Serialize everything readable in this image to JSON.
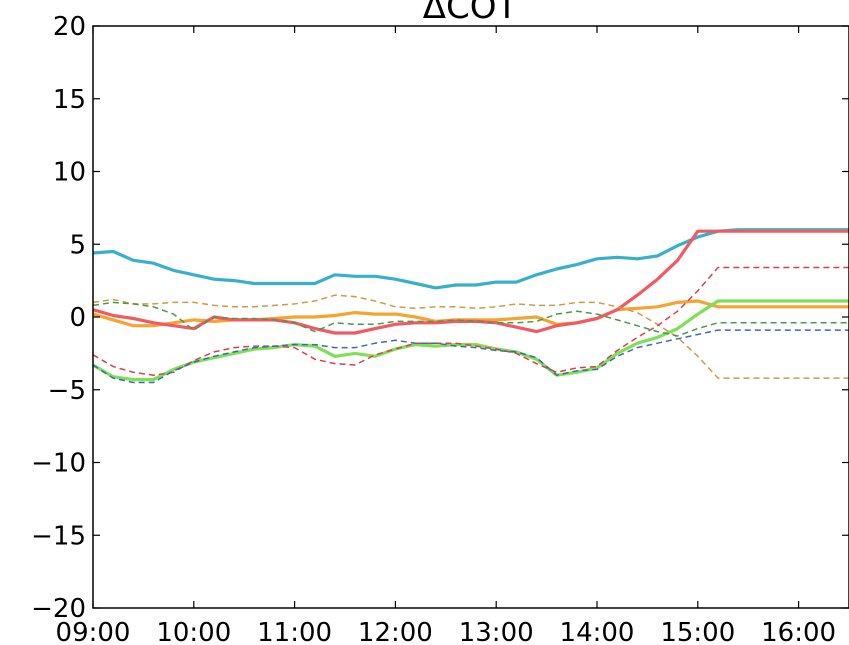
{
  "chart_data": {
    "type": "line",
    "title": "ΔCOT",
    "xlabel": "",
    "ylabel": "",
    "xlim": [
      "09:00",
      "16:30"
    ],
    "ylim": [
      -20,
      20
    ],
    "x_ticks": [
      "09:00",
      "10:00",
      "11:00",
      "12:00",
      "13:00",
      "14:00",
      "15:00",
      "16:00"
    ],
    "y_ticks": [
      "20",
      "15",
      "10",
      "5",
      "0",
      "−5",
      "−10",
      "−15",
      "−20"
    ],
    "y_tick_values": [
      20,
      15,
      10,
      5,
      0,
      -5,
      -10,
      -15,
      -20
    ],
    "grid": false,
    "x": [
      "09:00",
      "09:12",
      "09:24",
      "09:36",
      "09:48",
      "10:00",
      "10:12",
      "10:24",
      "10:36",
      "10:48",
      "11:00",
      "11:12",
      "11:24",
      "11:36",
      "11:48",
      "12:00",
      "12:12",
      "12:24",
      "12:36",
      "12:48",
      "13:00",
      "13:12",
      "13:24",
      "13:36",
      "13:48",
      "14:00",
      "14:12",
      "14:24",
      "14:36",
      "14:48",
      "15:00",
      "15:12",
      "15:24",
      "15:36",
      "15:48",
      "16:00",
      "16:12",
      "16:24",
      "16:30"
    ],
    "series": [
      {
        "color": "#38b0cc",
        "style": "solid",
        "values": [
          4.4,
          4.5,
          3.9,
          3.7,
          3.2,
          2.9,
          2.6,
          2.5,
          2.3,
          2.3,
          2.3,
          2.3,
          2.9,
          2.8,
          2.8,
          2.6,
          2.3,
          2.0,
          2.2,
          2.2,
          2.4,
          2.4,
          2.9,
          3.3,
          3.6,
          4.0,
          4.1,
          4.0,
          4.2,
          4.9,
          5.5,
          5.9,
          6.0,
          6.0,
          6.0,
          6.0,
          6.0,
          6.0,
          6.0
        ]
      },
      {
        "color": "#f5a433",
        "style": "solid",
        "values": [
          0.2,
          -0.2,
          -0.6,
          -0.6,
          -0.4,
          -0.2,
          -0.3,
          -0.2,
          -0.2,
          -0.1,
          0.0,
          0.0,
          0.1,
          0.3,
          0.2,
          0.2,
          0.0,
          -0.3,
          -0.2,
          -0.2,
          -0.2,
          -0.1,
          0.0,
          -0.5,
          -0.4,
          -0.1,
          0.5,
          0.6,
          0.7,
          1.0,
          1.1,
          0.7,
          0.7,
          0.7,
          0.7,
          0.7,
          0.7,
          0.7,
          0.7
        ]
      },
      {
        "color": "#f25a63",
        "style": "solid",
        "values": [
          0.5,
          0.1,
          -0.1,
          -0.4,
          -0.6,
          -0.8,
          0.0,
          -0.2,
          -0.2,
          -0.2,
          -0.4,
          -0.8,
          -1.1,
          -1.1,
          -0.8,
          -0.5,
          -0.4,
          -0.4,
          -0.3,
          -0.3,
          -0.4,
          -0.7,
          -1.0,
          -0.6,
          -0.4,
          -0.1,
          0.5,
          1.5,
          2.6,
          3.9,
          5.9,
          5.9,
          5.9,
          5.9,
          5.9,
          5.9,
          5.9,
          5.9,
          5.9
        ]
      },
      {
        "color": "#7ee057",
        "style": "solid",
        "values": [
          -3.3,
          -4.1,
          -4.3,
          -4.3,
          -3.6,
          -3.1,
          -2.8,
          -2.5,
          -2.2,
          -2.1,
          -1.9,
          -2.0,
          -2.7,
          -2.5,
          -2.7,
          -2.2,
          -1.9,
          -2.0,
          -1.9,
          -1.9,
          -2.2,
          -2.4,
          -2.9,
          -4.0,
          -3.8,
          -3.5,
          -2.5,
          -1.8,
          -1.4,
          -0.8,
          0.2,
          1.1,
          1.1,
          1.1,
          1.1,
          1.1,
          1.1,
          1.1,
          1.1
        ]
      },
      {
        "color": "#d09a45",
        "style": "dashed",
        "values": [
          1.0,
          1.2,
          0.9,
          0.9,
          1.0,
          1.0,
          0.8,
          0.7,
          0.7,
          0.8,
          0.9,
          1.1,
          1.5,
          1.4,
          1.1,
          0.7,
          0.6,
          0.7,
          0.7,
          0.6,
          0.7,
          0.9,
          0.8,
          0.8,
          1.0,
          1.0,
          0.7,
          0.3,
          -0.5,
          -1.4,
          -2.7,
          -4.2,
          -4.2,
          -4.2,
          -4.2,
          -4.2,
          -4.2,
          -4.2,
          -4.2
        ]
      },
      {
        "color": "#4a9a4a",
        "style": "dashed",
        "values": [
          0.8,
          1.0,
          0.9,
          0.7,
          0.2,
          -0.9,
          0.0,
          -0.1,
          -0.1,
          -0.2,
          -0.4,
          -1.0,
          -0.4,
          -0.5,
          -0.5,
          -0.3,
          -0.3,
          -0.3,
          -0.2,
          -0.3,
          -0.4,
          -0.4,
          -0.3,
          0.2,
          0.4,
          0.2,
          -0.2,
          -0.6,
          -1.0,
          -1.3,
          -0.8,
          -0.4,
          -0.4,
          -0.4,
          -0.4,
          -0.4,
          -0.4,
          -0.4,
          -0.4
        ]
      },
      {
        "color": "#d9404f",
        "style": "dashed",
        "values": [
          -2.6,
          -3.4,
          -3.8,
          -4.0,
          -3.8,
          -3.0,
          -2.4,
          -2.1,
          -2.0,
          -2.0,
          -2.1,
          -2.9,
          -3.2,
          -3.3,
          -2.6,
          -2.2,
          -1.8,
          -1.8,
          -1.8,
          -2.0,
          -2.2,
          -2.5,
          -3.2,
          -3.8,
          -3.5,
          -3.4,
          -2.3,
          -1.4,
          -0.6,
          0.4,
          1.8,
          3.4,
          3.4,
          3.4,
          3.4,
          3.4,
          3.4,
          3.4,
          3.4
        ]
      },
      {
        "color": "#3a6fa8",
        "style": "dashed",
        "values": [
          -3.3,
          -4.2,
          -4.5,
          -4.5,
          -3.7,
          -3.1,
          -2.7,
          -2.4,
          -2.1,
          -2.0,
          -1.9,
          -1.9,
          -2.1,
          -2.1,
          -1.8,
          -1.6,
          -1.8,
          -1.8,
          -2.0,
          -2.1,
          -2.3,
          -2.4,
          -2.8,
          -4.0,
          -3.7,
          -3.6,
          -2.7,
          -2.1,
          -1.8,
          -1.5,
          -1.2,
          -0.9,
          -0.9,
          -0.9,
          -0.9,
          -0.9,
          -0.9,
          -0.9,
          -0.9
        ]
      }
    ]
  }
}
